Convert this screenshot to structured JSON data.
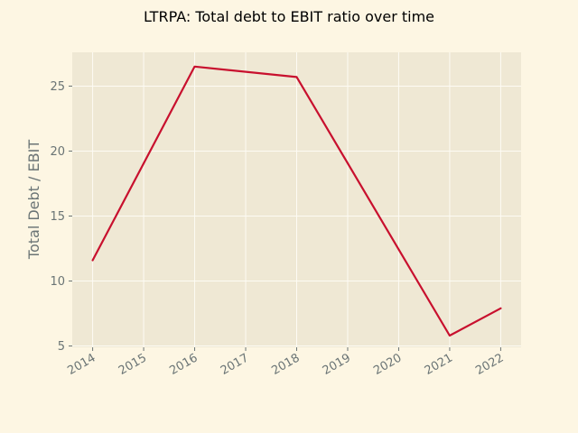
{
  "chart_data": {
    "type": "line",
    "title": "LTRPA: Total debt to EBIT ratio over time",
    "xlabel": "",
    "ylabel": "Total Debt / EBIT",
    "x": [
      2014,
      2016,
      2018,
      2021,
      2022
    ],
    "x_ticks": [
      "2014",
      "2015",
      "2016",
      "2017",
      "2018",
      "2019",
      "2020",
      "2021",
      "2022"
    ],
    "y_ticks": [
      5,
      10,
      15,
      20,
      25
    ],
    "xlim": [
      2013.6,
      2022.4
    ],
    "ylim": [
      4.9,
      27.6
    ],
    "series": [
      {
        "values": [
          11.6,
          26.5,
          25.7,
          5.8,
          7.9
        ]
      }
    ],
    "grid": true,
    "legend": "none",
    "colors": {
      "figure_bg": "#fdf6e3",
      "plot_bg": "#efe8d4",
      "grid": "#fdfbf4",
      "line": "#c8102e",
      "text": "#6a7475"
    }
  }
}
